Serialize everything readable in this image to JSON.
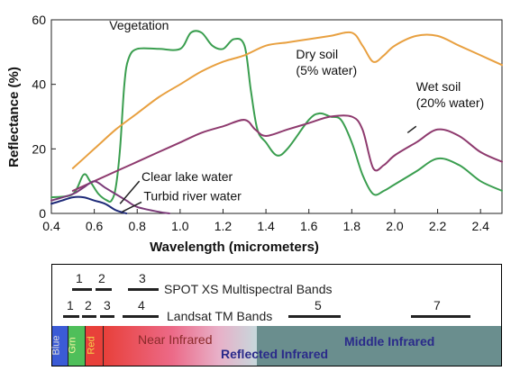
{
  "chart_data": {
    "type": "line",
    "title": "",
    "xlabel": "Wavelength (micrometers)",
    "ylabel": "Reflectance (%)",
    "xlim": [
      0.4,
      2.5
    ],
    "ylim": [
      0,
      60
    ],
    "xticks": [
      0.4,
      0.6,
      0.8,
      1.0,
      1.2,
      1.4,
      1.6,
      1.8,
      2.0,
      2.2,
      2.4
    ],
    "xtick_labels": [
      "0.4",
      "0.6",
      "0.8",
      "1.0",
      "1.2",
      "1.4",
      "1.6",
      "1.8",
      "2.0",
      "2.2",
      "2.4"
    ],
    "yticks": [
      0,
      20,
      40,
      60
    ],
    "ytick_labels": [
      "0",
      "20",
      "40",
      "60"
    ],
    "grid": false,
    "series": [
      {
        "name": "Vegetation",
        "color": "#3a9e4f",
        "points": [
          [
            0.4,
            5
          ],
          [
            0.5,
            6
          ],
          [
            0.55,
            12
          ],
          [
            0.58,
            10
          ],
          [
            0.62,
            6
          ],
          [
            0.66,
            4
          ],
          [
            0.68,
            4
          ],
          [
            0.7,
            8
          ],
          [
            0.72,
            20
          ],
          [
            0.74,
            40
          ],
          [
            0.76,
            48
          ],
          [
            0.8,
            51
          ],
          [
            0.9,
            51
          ],
          [
            1.0,
            51
          ],
          [
            1.05,
            56
          ],
          [
            1.1,
            56
          ],
          [
            1.15,
            52
          ],
          [
            1.2,
            51
          ],
          [
            1.25,
            54
          ],
          [
            1.3,
            52
          ],
          [
            1.33,
            38
          ],
          [
            1.36,
            26
          ],
          [
            1.4,
            22
          ],
          [
            1.45,
            18
          ],
          [
            1.5,
            20
          ],
          [
            1.6,
            29
          ],
          [
            1.65,
            31
          ],
          [
            1.7,
            30
          ],
          [
            1.75,
            29
          ],
          [
            1.8,
            22
          ],
          [
            1.85,
            12
          ],
          [
            1.9,
            6
          ],
          [
            1.95,
            7
          ],
          [
            2.0,
            9
          ],
          [
            2.1,
            13
          ],
          [
            2.2,
            17
          ],
          [
            2.3,
            15
          ],
          [
            2.4,
            10
          ],
          [
            2.5,
            7
          ]
        ]
      },
      {
        "name": "Dry soil (5% water)",
        "color": "#e8a040",
        "points": [
          [
            0.5,
            14
          ],
          [
            0.6,
            20
          ],
          [
            0.7,
            26
          ],
          [
            0.8,
            31
          ],
          [
            0.9,
            36
          ],
          [
            1.0,
            40
          ],
          [
            1.1,
            44
          ],
          [
            1.2,
            47
          ],
          [
            1.3,
            49
          ],
          [
            1.4,
            52
          ],
          [
            1.5,
            53
          ],
          [
            1.6,
            54
          ],
          [
            1.7,
            55
          ],
          [
            1.8,
            56
          ],
          [
            1.85,
            52
          ],
          [
            1.9,
            47
          ],
          [
            1.95,
            49
          ],
          [
            2.0,
            52
          ],
          [
            2.1,
            55
          ],
          [
            2.2,
            55
          ],
          [
            2.3,
            52
          ],
          [
            2.4,
            49
          ],
          [
            2.5,
            46
          ]
        ]
      },
      {
        "name": "Wet soil (20% water)",
        "color": "#8e3a6e",
        "points": [
          [
            0.5,
            7
          ],
          [
            0.6,
            10
          ],
          [
            0.7,
            13
          ],
          [
            0.8,
            16
          ],
          [
            0.9,
            19
          ],
          [
            1.0,
            22
          ],
          [
            1.1,
            25
          ],
          [
            1.2,
            27
          ],
          [
            1.3,
            29
          ],
          [
            1.35,
            26
          ],
          [
            1.4,
            24
          ],
          [
            1.5,
            26
          ],
          [
            1.6,
            28
          ],
          [
            1.7,
            30
          ],
          [
            1.8,
            30
          ],
          [
            1.85,
            26
          ],
          [
            1.9,
            14
          ],
          [
            1.95,
            15
          ],
          [
            2.0,
            18
          ],
          [
            2.1,
            22
          ],
          [
            2.2,
            26
          ],
          [
            2.3,
            24
          ],
          [
            2.4,
            19
          ],
          [
            2.5,
            16
          ]
        ]
      },
      {
        "name": "Clear lake water",
        "color": "#1e2a78",
        "points": [
          [
            0.4,
            3
          ],
          [
            0.45,
            4
          ],
          [
            0.5,
            5
          ],
          [
            0.55,
            5
          ],
          [
            0.6,
            4
          ],
          [
            0.65,
            3
          ],
          [
            0.7,
            1
          ],
          [
            0.75,
            0
          ]
        ]
      },
      {
        "name": "Turbid river water",
        "color": "#7a3a78",
        "points": [
          [
            0.4,
            4
          ],
          [
            0.5,
            6
          ],
          [
            0.55,
            8
          ],
          [
            0.6,
            10
          ],
          [
            0.65,
            8
          ],
          [
            0.7,
            6
          ],
          [
            0.75,
            4
          ],
          [
            0.8,
            2
          ],
          [
            0.9,
            0.5
          ],
          [
            0.95,
            0
          ]
        ]
      }
    ],
    "annotations": [
      {
        "text": "Vegetation",
        "x": 0.67,
        "y": 57
      },
      {
        "lines": [
          "Dry soil",
          "(5% water)"
        ],
        "x": 1.54,
        "y": 48
      },
      {
        "lines": [
          "Wet soil",
          "(20% water)"
        ],
        "x": 2.1,
        "y": 38
      },
      {
        "text": "Clear lake water",
        "x": 0.82,
        "y": 10
      },
      {
        "text": "Turbid river water",
        "x": 0.83,
        "y": 4
      }
    ]
  },
  "bands": {
    "spot_label": "SPOT XS Multispectral Bands",
    "landsat_label": "Landsat TM Bands",
    "spot_numbers": [
      "1",
      "2",
      "3"
    ],
    "landsat_numbers": [
      "1",
      "2",
      "3",
      "4",
      "5",
      "7"
    ],
    "spectrum": {
      "blue": "Blue",
      "green": "Grn",
      "red": "Red",
      "near_infrared": "Near Infrared",
      "reflected_infrared": "Reflected Infrared",
      "middle_infrared": "Middle Infrared"
    },
    "colors": {
      "blue": "#3b5bd6",
      "green": "#4fbf5a",
      "red": "#e8403a",
      "middle": "#6a8e8e",
      "region_text": "#2a2a8a"
    }
  }
}
